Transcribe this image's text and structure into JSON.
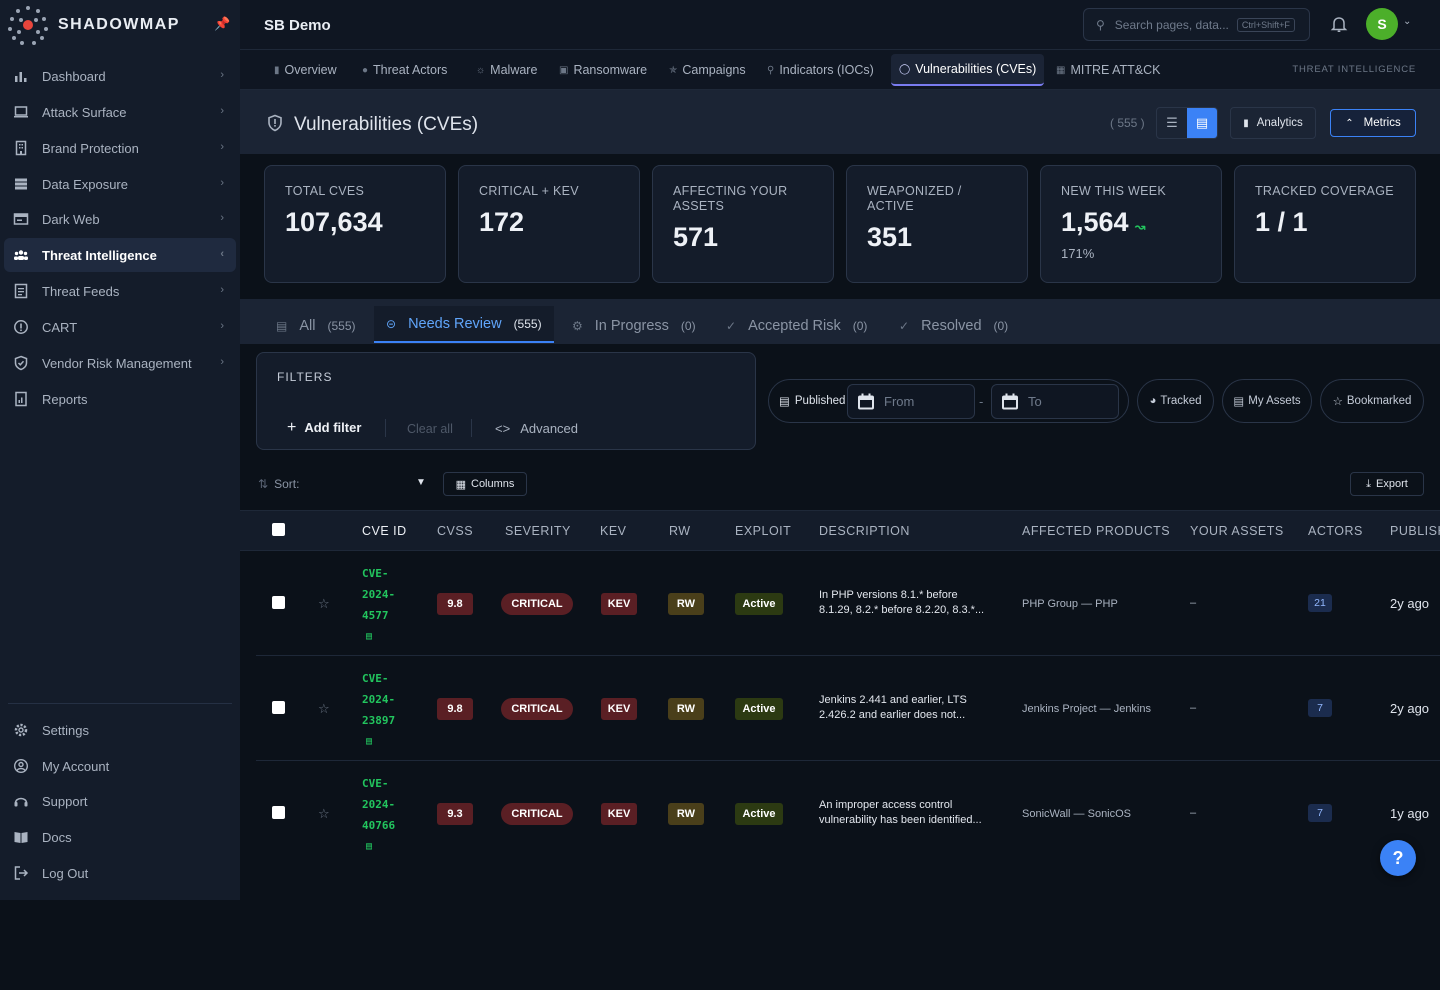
{
  "brand": {
    "name": "SHADOWMAP"
  },
  "sidebar": {
    "items": [
      {
        "label": "Dashboard",
        "icon": "bar-chart-icon"
      },
      {
        "label": "Attack Surface",
        "icon": "laptop-icon"
      },
      {
        "label": "Brand Protection",
        "icon": "building-icon"
      },
      {
        "label": "Data Exposure",
        "icon": "database-icon"
      },
      {
        "label": "Dark Web",
        "icon": "terminal-icon"
      },
      {
        "label": "Threat Intelligence",
        "icon": "users-icon",
        "active": true
      },
      {
        "label": "Threat Feeds",
        "icon": "feed-icon"
      },
      {
        "label": "CART",
        "icon": "cart-icon"
      },
      {
        "label": "Vendor Risk Management",
        "icon": "shield-check-icon"
      },
      {
        "label": "Reports",
        "icon": "report-icon"
      }
    ],
    "bottom": [
      {
        "label": "Settings",
        "icon": "gear-icon"
      },
      {
        "label": "My Account",
        "icon": "user-circle-icon"
      },
      {
        "label": "Support",
        "icon": "support-icon"
      },
      {
        "label": "Docs",
        "icon": "book-icon"
      },
      {
        "label": "Log Out",
        "icon": "logout-icon"
      }
    ]
  },
  "topbar": {
    "org": "SB Demo",
    "search_placeholder": "Search pages, data...",
    "search_shortcut": "Ctrl+Shift+F",
    "avatar_initial": "S"
  },
  "tabnav": {
    "items": [
      {
        "label": "Overview"
      },
      {
        "label": "Threat Actors"
      },
      {
        "label": "Malware"
      },
      {
        "label": "Ransomware"
      },
      {
        "label": "Campaigns"
      },
      {
        "label": "Indicators (IOCs)"
      },
      {
        "label": "Vulnerabilities (CVEs)",
        "active": true
      },
      {
        "label": "MITRE ATT&CK"
      }
    ],
    "section": "THREAT INTELLIGENCE"
  },
  "header": {
    "title": "Vulnerabilities (CVEs)",
    "count": "( 555 )",
    "analytics_label": "Analytics",
    "metrics_label": "Metrics"
  },
  "metrics": [
    {
      "label": "TOTAL CVES",
      "value": "107,634"
    },
    {
      "label": "CRITICAL + KEV",
      "value": "172"
    },
    {
      "label": "AFFECTING YOUR ASSETS",
      "value": "571"
    },
    {
      "label": "WEAPONIZED / ACTIVE",
      "value": "351"
    },
    {
      "label": "NEW THIS WEEK",
      "value": "1,564",
      "sub": "171%"
    },
    {
      "label": "TRACKED COVERAGE",
      "value": "1 / 1"
    }
  ],
  "status_tabs": [
    {
      "label": "All",
      "count": "(555)"
    },
    {
      "label": "Needs Review",
      "count": "(555)",
      "active": true
    },
    {
      "label": "In Progress",
      "count": "(0)"
    },
    {
      "label": "Accepted Risk",
      "count": "(0)"
    },
    {
      "label": "Resolved",
      "count": "(0)"
    }
  ],
  "filters": {
    "title": "FILTERS",
    "add_label": "Add filter",
    "clear_label": "Clear all",
    "advanced_label": "Advanced",
    "published_label": "Published",
    "from_placeholder": "From",
    "to_placeholder": "To",
    "tracked_label": "Tracked",
    "my_assets_label": "My Assets",
    "bookmarked_label": "Bookmarked"
  },
  "toolbar": {
    "sort_label": "Sort:",
    "columns_label": "Columns",
    "export_label": "Export"
  },
  "table": {
    "headers": [
      "CVE ID",
      "CVSS",
      "SEVERITY",
      "KEV",
      "RW",
      "EXPLOIT",
      "DESCRIPTION",
      "AFFECTED PRODUCTS",
      "YOUR ASSETS",
      "ACTORS",
      "PUBLISH"
    ],
    "rows": [
      {
        "cve1": "CVE-",
        "cve2": "2024-",
        "cve3": "4577",
        "cvss": "9.8",
        "severity": "CRITICAL",
        "kev": "KEV",
        "rw": "RW",
        "exploit": "Active",
        "desc1": "In PHP versions 8.1.* before",
        "desc2": "8.1.29, 8.2.* before 8.2.20, 8.3.*...",
        "product": "PHP Group — PHP",
        "assets": "–",
        "actors": "21",
        "published": "2y ago"
      },
      {
        "cve1": "CVE-",
        "cve2": "2024-",
        "cve3": "23897",
        "cvss": "9.8",
        "severity": "CRITICAL",
        "kev": "KEV",
        "rw": "RW",
        "exploit": "Active",
        "desc1": "Jenkins 2.441 and earlier, LTS",
        "desc2": "2.426.2 and earlier does not...",
        "product": "Jenkins Project — Jenkins",
        "assets": "–",
        "actors": "7",
        "published": "2y ago"
      },
      {
        "cve1": "CVE-",
        "cve2": "2024-",
        "cve3": "40766",
        "cvss": "9.3",
        "severity": "CRITICAL",
        "kev": "KEV",
        "rw": "RW",
        "exploit": "Active",
        "desc1": "An improper access control",
        "desc2": "vulnerability has been identified...",
        "product": "SonicWall — SonicOS",
        "assets": "–",
        "actors": "7",
        "published": "1y ago"
      }
    ]
  },
  "help_label": "?"
}
